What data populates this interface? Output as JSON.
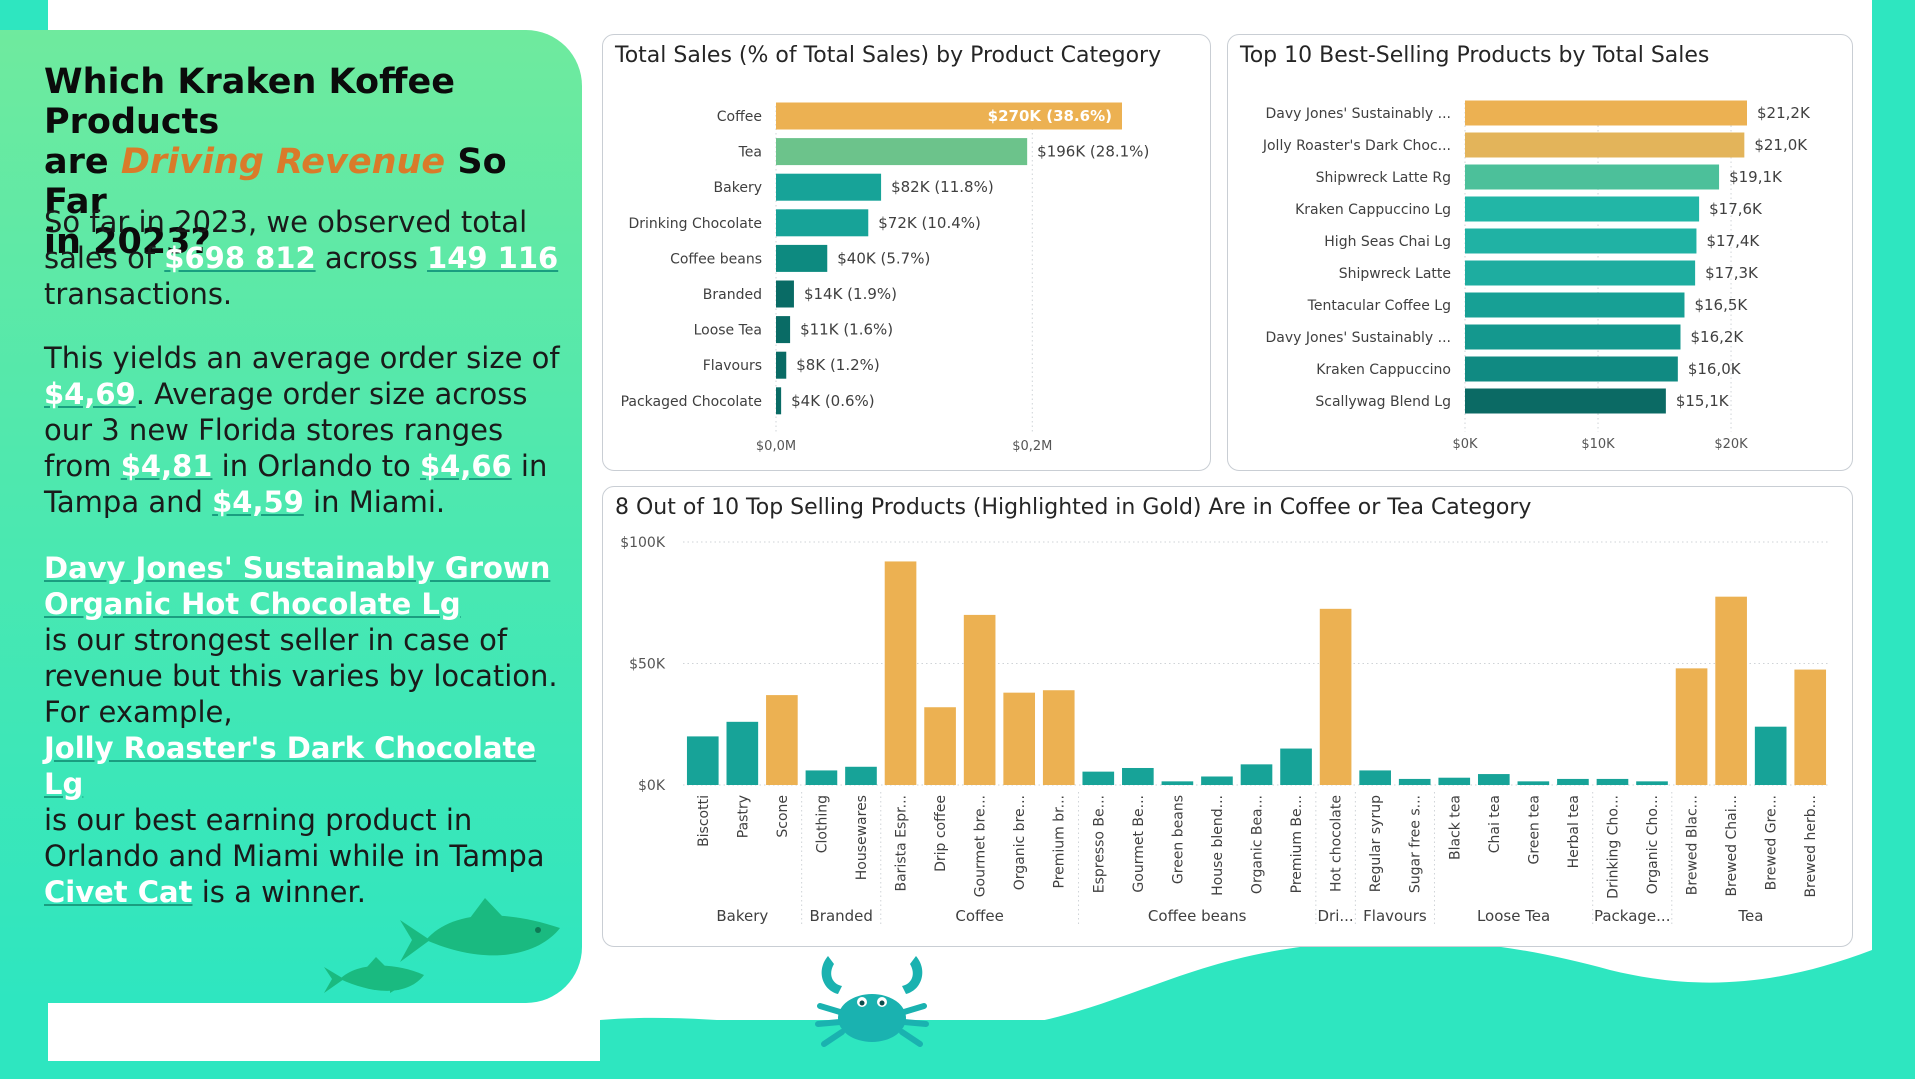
{
  "story": {
    "headline_part1": "Which Kraken Koffee Products",
    "headline_part2": "are ",
    "headline_highlight": "Driving Revenue",
    "headline_part3": " So Far",
    "headline_part4": "in 2023?",
    "p1_a": "So far in 2023, we observed total sales of ",
    "p1_sales": "$698 812",
    "p1_b": " across ",
    "p1_transactions": "149 116",
    "p1_c": " transactions.",
    "p2_a": "This yields an average order size of  ",
    "p2_avg": "$4,69",
    "p2_b": ". Average order size across our 3 new Florida stores ranges from ",
    "p2_orlando": "$4,81",
    "p2_c": " in  Orlando to ",
    "p2_tampa": "$4,66",
    "p2_d": " in Tampa and ",
    "p2_miami": "$4,59",
    "p2_e": " in Miami.",
    "p3_product1": "Davy Jones' Sustainably Grown Organic Hot Chocolate Lg",
    "p3_a": "is our strongest seller in case of revenue but this varies by location. For example,",
    "p3_product2": "Jolly Roaster's Dark Chocolate Lg",
    "p3_b": "is our best earning product in Orlando and Miami while in Tampa ",
    "p3_product3": "Civet Cat",
    "p3_c": " is a winner."
  },
  "colors": {
    "gold": "#ecb152",
    "teal": "#17a398",
    "light_green": "#6cc38b",
    "green_card": "#4fe8ae",
    "sea": "#2ee6c0",
    "fish": "#1aba80"
  },
  "icons": [
    "fish-icon",
    "crab-icon"
  ],
  "chart_data": [
    {
      "type": "bar",
      "orientation": "horizontal",
      "title": "Total Sales (% of Total Sales) by Product Category",
      "categories": [
        "Coffee",
        "Tea",
        "Bakery",
        "Drinking Chocolate",
        "Coffee beans",
        "Branded",
        "Loose Tea",
        "Flavours",
        "Packaged Chocolate"
      ],
      "values": [
        270,
        196,
        82,
        72,
        40,
        14,
        11,
        8,
        4
      ],
      "labels": [
        "$270K (38.6%)",
        "$196K (28.1%)",
        "$82K (11.8%)",
        "$72K (10.4%)",
        "$40K (5.7%)",
        "$14K (1.9%)",
        "$11K (1.6%)",
        "$8K (1.2%)",
        "$4K (0.6%)"
      ],
      "bar_colors": [
        "#ecb152",
        "#6cc38b",
        "#17a398",
        "#17a398",
        "#0d8a80",
        "#096b65",
        "#096b65",
        "#096b65",
        "#096b65"
      ],
      "xlim": [
        0,
        270
      ],
      "xticks": [
        {
          "value": 0,
          "label": "$0,0M"
        },
        {
          "value": 200,
          "label": "$0,2M"
        }
      ],
      "grid": true
    },
    {
      "type": "bar",
      "orientation": "horizontal",
      "title": "Top 10 Best-Selling Products by Total Sales",
      "categories": [
        "Davy Jones' Sustainably ...",
        "Jolly Roaster's Dark Choc...",
        "Shipwreck Latte Rg",
        "Kraken Cappuccino Lg",
        "High Seas Chai Lg",
        "Shipwreck Latte",
        "Tentacular Coffee Lg",
        "Davy Jones' Sustainably ...",
        "Kraken Cappuccino",
        "Scallywag Blend Lg"
      ],
      "values": [
        21.2,
        21.0,
        19.1,
        17.6,
        17.4,
        17.3,
        16.5,
        16.2,
        16.0,
        15.1
      ],
      "labels": [
        "$21,2K",
        "$21,0K",
        "$19,1K",
        "$17,6K",
        "$17,4K",
        "$17,3K",
        "$16,5K",
        "$16,2K",
        "$16,0K",
        "$15,1K"
      ],
      "bar_colors": [
        "#ecb152",
        "#e3b45a",
        "#4cc09a",
        "#22b6a6",
        "#20b2a4",
        "#1eada0",
        "#17a095",
        "#14988e",
        "#108a82",
        "#0b6a64"
      ],
      "xlim": [
        0,
        21.2
      ],
      "xticks": [
        {
          "value": 0,
          "label": "$0K"
        },
        {
          "value": 10,
          "label": "$10K"
        },
        {
          "value": 20,
          "label": "$20K"
        }
      ],
      "grid": true
    },
    {
      "type": "bar",
      "title": "8 Out of 10 Top Selling Products (Highlighted in Gold) Are in Coffee or Tea Category",
      "categories": [
        "Biscotti",
        "Pastry",
        "Scone",
        "Clothing",
        "Housewares",
        "Barista Espr...",
        "Drip coffee",
        "Gourmet bre...",
        "Organic bre...",
        "Premium br...",
        "Espresso Be...",
        "Gourmet Be...",
        "Green beans",
        "House blend...",
        "Organic Bea...",
        "Premium Be...",
        "Hot chocolate",
        "Regular syrup",
        "Sugar free s...",
        "Black tea",
        "Chai tea",
        "Green tea",
        "Herbal tea",
        "Drinking Cho...",
        "Organic Cho...",
        "Brewed Blac...",
        "Brewed Chai...",
        "Brewed Gre...",
        "Brewed herb..."
      ],
      "values": [
        20,
        26,
        37,
        6,
        7.5,
        92,
        32,
        70,
        38,
        39,
        5.5,
        7,
        1.5,
        3.5,
        8.5,
        15,
        72.5,
        6,
        2.5,
        3,
        4.5,
        1.5,
        2.5,
        2.5,
        1.5,
        48,
        77.5,
        24,
        47.5
      ],
      "highlight": [
        false,
        false,
        true,
        false,
        false,
        true,
        true,
        true,
        true,
        true,
        false,
        false,
        false,
        false,
        false,
        false,
        true,
        false,
        false,
        false,
        false,
        false,
        false,
        false,
        false,
        true,
        true,
        false,
        true
      ],
      "groups": [
        {
          "label": "Bakery",
          "count": 3
        },
        {
          "label": "Branded",
          "count": 2
        },
        {
          "label": "Coffee",
          "count": 5
        },
        {
          "label": "Coffee beans",
          "count": 6
        },
        {
          "label": "Dri...",
          "count": 1
        },
        {
          "label": "Flavours",
          "count": 2
        },
        {
          "label": "Loose Tea",
          "count": 4
        },
        {
          "label": "Package...",
          "count": 2
        },
        {
          "label": "Tea",
          "count": 4
        }
      ],
      "ylim": [
        0,
        100
      ],
      "yticks": [
        {
          "value": 0,
          "label": "$0K"
        },
        {
          "value": 50,
          "label": "$50K"
        },
        {
          "value": 100,
          "label": "$100K"
        }
      ],
      "grid": true
    }
  ]
}
